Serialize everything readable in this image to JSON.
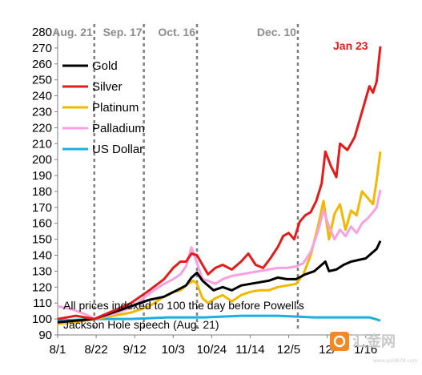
{
  "chart_data": {
    "type": "line",
    "title": "",
    "xlabel": "",
    "ylabel": "",
    "ylim": [
      90,
      280
    ],
    "yticks": [
      90,
      100,
      110,
      120,
      130,
      140,
      150,
      160,
      170,
      180,
      190,
      200,
      210,
      220,
      230,
      240,
      250,
      260,
      270,
      280
    ],
    "x_tick_labels": [
      "8/1",
      "8/22",
      "9/12",
      "10/3",
      "10/24",
      "11/14",
      "12/5",
      "12/",
      "1/16"
    ],
    "x_tick_days": [
      0,
      21,
      42,
      63,
      84,
      105,
      126,
      147,
      168
    ],
    "legend_position": "top-left",
    "grid": false,
    "events": [
      {
        "label": "Aug. 21",
        "day": 20
      },
      {
        "label": "Sep. 17",
        "day": 47
      },
      {
        "label": "Oct. 16",
        "day": 76
      },
      {
        "label": "Dec. 10",
        "day": 131
      }
    ],
    "callout": {
      "label": "Jan 23",
      "color": "#e21b1b"
    },
    "note_lines": [
      "All prices indexed to 100 the day before Powell's",
      "Jackson Hole speech (Aug. 21)"
    ],
    "series": [
      {
        "name": "Gold",
        "color": "#000000",
        "points": [
          [
            0,
            98
          ],
          [
            10,
            99
          ],
          [
            20,
            100
          ],
          [
            30,
            104
          ],
          [
            40,
            108
          ],
          [
            50,
            112
          ],
          [
            58,
            114
          ],
          [
            65,
            118
          ],
          [
            70,
            121
          ],
          [
            73,
            126
          ],
          [
            76,
            129
          ],
          [
            79,
            124
          ],
          [
            82,
            121
          ],
          [
            85,
            118
          ],
          [
            90,
            120
          ],
          [
            95,
            118
          ],
          [
            100,
            121
          ],
          [
            105,
            122
          ],
          [
            110,
            123
          ],
          [
            115,
            124
          ],
          [
            120,
            126
          ],
          [
            125,
            125
          ],
          [
            130,
            125
          ],
          [
            135,
            128
          ],
          [
            140,
            130
          ],
          [
            143,
            133
          ],
          [
            146,
            136
          ],
          [
            148,
            130
          ],
          [
            152,
            131
          ],
          [
            156,
            134
          ],
          [
            160,
            136
          ],
          [
            164,
            137
          ],
          [
            168,
            138
          ],
          [
            171,
            141
          ],
          [
            174,
            144
          ],
          [
            176,
            149
          ]
        ]
      },
      {
        "name": "Silver",
        "color": "#e21b1b",
        "points": [
          [
            0,
            100
          ],
          [
            10,
            102
          ],
          [
            20,
            100
          ],
          [
            30,
            105
          ],
          [
            40,
            110
          ],
          [
            50,
            118
          ],
          [
            58,
            125
          ],
          [
            63,
            132
          ],
          [
            67,
            136
          ],
          [
            70,
            136
          ],
          [
            73,
            141
          ],
          [
            76,
            140
          ],
          [
            79,
            134
          ],
          [
            82,
            128
          ],
          [
            86,
            132
          ],
          [
            90,
            134
          ],
          [
            95,
            131
          ],
          [
            100,
            136
          ],
          [
            104,
            141
          ],
          [
            108,
            134
          ],
          [
            112,
            132
          ],
          [
            116,
            138
          ],
          [
            120,
            145
          ],
          [
            123,
            152
          ],
          [
            126,
            154
          ],
          [
            129,
            150
          ],
          [
            132,
            161
          ],
          [
            135,
            165
          ],
          [
            138,
            167
          ],
          [
            141,
            174
          ],
          [
            144,
            185
          ],
          [
            146,
            205
          ],
          [
            149,
            196
          ],
          [
            152,
            189
          ],
          [
            154,
            210
          ],
          [
            158,
            206
          ],
          [
            162,
            214
          ],
          [
            166,
            230
          ],
          [
            168,
            238
          ],
          [
            170,
            246
          ],
          [
            172,
            242
          ],
          [
            174,
            249
          ],
          [
            176,
            271
          ]
        ]
      },
      {
        "name": "Platinum",
        "color": "#f2b800",
        "points": [
          [
            0,
            97
          ],
          [
            10,
            98
          ],
          [
            20,
            100
          ],
          [
            30,
            102
          ],
          [
            40,
            104
          ],
          [
            50,
            108
          ],
          [
            58,
            114
          ],
          [
            63,
            117
          ],
          [
            67,
            118
          ],
          [
            71,
            122
          ],
          [
            74,
            124
          ],
          [
            76,
            122
          ],
          [
            79,
            113
          ],
          [
            82,
            110
          ],
          [
            86,
            113
          ],
          [
            90,
            115
          ],
          [
            95,
            111
          ],
          [
            100,
            115
          ],
          [
            105,
            117
          ],
          [
            110,
            118
          ],
          [
            115,
            118
          ],
          [
            120,
            120
          ],
          [
            125,
            121
          ],
          [
            130,
            122
          ],
          [
            134,
            128
          ],
          [
            138,
            140
          ],
          [
            142,
            158
          ],
          [
            145,
            174
          ],
          [
            148,
            150
          ],
          [
            151,
            166
          ],
          [
            154,
            172
          ],
          [
            157,
            156
          ],
          [
            160,
            168
          ],
          [
            163,
            165
          ],
          [
            166,
            180
          ],
          [
            169,
            176
          ],
          [
            172,
            172
          ],
          [
            174,
            187
          ],
          [
            176,
            205
          ]
        ]
      },
      {
        "name": "Palladium",
        "color": "#f7a1e0",
        "points": [
          [
            0,
            108
          ],
          [
            8,
            106
          ],
          [
            15,
            103
          ],
          [
            20,
            100
          ],
          [
            30,
            103
          ],
          [
            40,
            107
          ],
          [
            50,
            116
          ],
          [
            58,
            122
          ],
          [
            63,
            125
          ],
          [
            67,
            128
          ],
          [
            70,
            133
          ],
          [
            73,
            145
          ],
          [
            76,
            135
          ],
          [
            79,
            125
          ],
          [
            82,
            124
          ],
          [
            86,
            122
          ],
          [
            90,
            125
          ],
          [
            95,
            127
          ],
          [
            100,
            128
          ],
          [
            105,
            129
          ],
          [
            110,
            130
          ],
          [
            115,
            131
          ],
          [
            120,
            132
          ],
          [
            125,
            132
          ],
          [
            130,
            133
          ],
          [
            134,
            135
          ],
          [
            138,
            142
          ],
          [
            142,
            155
          ],
          [
            145,
            168
          ],
          [
            148,
            158
          ],
          [
            151,
            150
          ],
          [
            154,
            156
          ],
          [
            157,
            152
          ],
          [
            160,
            158
          ],
          [
            163,
            154
          ],
          [
            166,
            160
          ],
          [
            169,
            163
          ],
          [
            172,
            167
          ],
          [
            174,
            170
          ],
          [
            176,
            181
          ]
        ]
      },
      {
        "name": "US Dollar",
        "color": "#1ab0e0",
        "points": [
          [
            0,
            99
          ],
          [
            20,
            100
          ],
          [
            40,
            100
          ],
          [
            60,
            101
          ],
          [
            80,
            101
          ],
          [
            100,
            102
          ],
          [
            120,
            102
          ],
          [
            140,
            101
          ],
          [
            160,
            101
          ],
          [
            170,
            101
          ],
          [
            176,
            99
          ]
        ]
      }
    ]
  },
  "watermark": {
    "text": "汇金网",
    "subtext": "www.gold678.com"
  }
}
